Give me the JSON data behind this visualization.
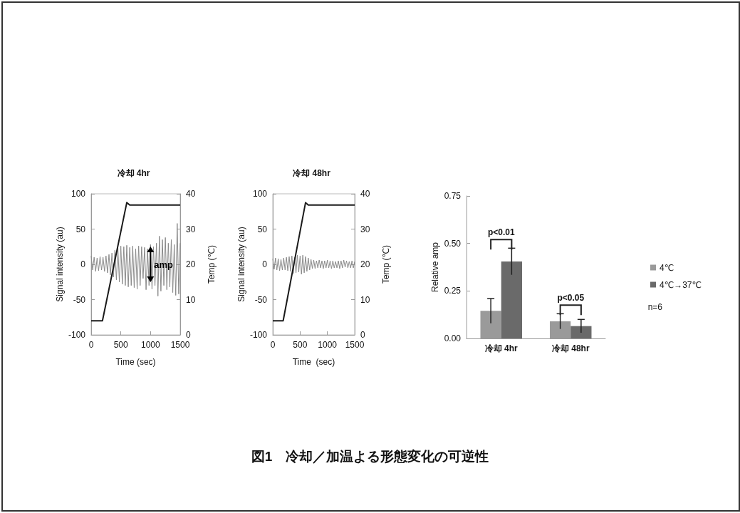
{
  "chart_data": [
    {
      "type": "line",
      "title": "冷却 4hr",
      "xlabel": "Time (sec)",
      "ylabel": "Signal intensity (au)",
      "y2label": "Temp (℃)",
      "marker": "none",
      "line_style": "solid",
      "grid": false,
      "legend": false,
      "xlim": [
        0,
        1500
      ],
      "xticks": [
        0,
        500,
        1000,
        1500
      ],
      "ylim": [
        -100,
        100
      ],
      "yticks": [
        -100,
        -50,
        0,
        50,
        100
      ],
      "y2lim": [
        0,
        40
      ],
      "y2ticks": [
        0,
        10,
        20,
        30,
        40
      ],
      "annotations": [
        {
          "text": "amp",
          "x": 1000,
          "y": 0
        }
      ],
      "series": [
        {
          "color": "#8a8a8a",
          "x": [
            0,
            25,
            50,
            75,
            100,
            125,
            150,
            175,
            200,
            225,
            250,
            275,
            300,
            325,
            350,
            375,
            400,
            425,
            450,
            475,
            500,
            525,
            550,
            575,
            600,
            625,
            650,
            675,
            700,
            725,
            750,
            775,
            800,
            825,
            850,
            875,
            900,
            925,
            950,
            975,
            1000,
            1025,
            1050,
            1075,
            1100,
            1125,
            1150,
            1175,
            1200,
            1225,
            1250,
            1275,
            1300,
            1325,
            1350,
            1375,
            1400,
            1425,
            1450,
            1475,
            1500
          ],
          "values": [
            12,
            -8,
            10,
            -10,
            9,
            -9,
            11,
            -8,
            10,
            -10,
            12,
            -12,
            14,
            -15,
            16,
            -18,
            20,
            -22,
            24,
            -25,
            26,
            -28,
            25,
            -30,
            27,
            -32,
            24,
            -30,
            26,
            -33,
            22,
            -35,
            26,
            -30,
            25,
            -20,
            24,
            -36,
            22,
            -30,
            28,
            -35,
            25,
            -30,
            30,
            -45,
            40,
            -38,
            35,
            -30,
            38,
            -36,
            30,
            -32,
            35,
            -40,
            28,
            -44,
            58,
            -42,
            30
          ]
        },
        {
          "color": "#1a1a1a",
          "axis": "y2",
          "x": [
            0,
            190,
            600,
            650,
            1500
          ],
          "values": [
            4,
            4,
            37.5,
            36.8,
            36.8
          ]
        }
      ]
    },
    {
      "type": "line",
      "title": "冷却 48hr",
      "xlabel": "Time  (sec)",
      "ylabel": "Signal intensity (au)",
      "y2label": "Temp (℃)",
      "marker": "none",
      "line_style": "solid",
      "grid": false,
      "legend": false,
      "xlim": [
        0,
        1500
      ],
      "xticks": [
        0,
        500,
        1000,
        1500
      ],
      "ylim": [
        -100,
        100
      ],
      "yticks": [
        -100,
        -50,
        0,
        50,
        100
      ],
      "y2lim": [
        0,
        40
      ],
      "y2ticks": [
        0,
        10,
        20,
        30,
        40
      ],
      "series": [
        {
          "color": "#8a8a8a",
          "x": [
            0,
            25,
            50,
            75,
            100,
            125,
            150,
            175,
            200,
            225,
            250,
            275,
            300,
            325,
            350,
            375,
            400,
            425,
            450,
            475,
            500,
            525,
            550,
            575,
            600,
            625,
            650,
            675,
            700,
            725,
            750,
            775,
            800,
            825,
            850,
            875,
            900,
            925,
            950,
            975,
            1000,
            1025,
            1050,
            1075,
            1100,
            1125,
            1150,
            1175,
            1200,
            1225,
            1250,
            1275,
            1300,
            1325,
            1350,
            1375,
            1400,
            1425,
            1450,
            1475,
            1500
          ],
          "values": [
            8,
            -7,
            9,
            -8,
            8,
            -9,
            7,
            -8,
            9,
            -8,
            10,
            -9,
            11,
            -10,
            12,
            -13,
            10,
            -12,
            13,
            -11,
            12,
            -14,
            13,
            -12,
            11,
            -10,
            9,
            -8,
            7,
            -6,
            6,
            -6,
            5,
            -5,
            6,
            -5,
            5,
            -6,
            5,
            -5,
            6,
            -5,
            5,
            -6,
            5,
            -5,
            4,
            -5,
            5,
            -6,
            5,
            -5,
            6,
            -4,
            5,
            -5,
            4,
            -5,
            5,
            -5,
            4
          ]
        },
        {
          "color": "#1a1a1a",
          "axis": "y2",
          "x": [
            0,
            190,
            600,
            650,
            1500
          ],
          "values": [
            4,
            4,
            37.5,
            36.8,
            36.8
          ]
        }
      ]
    },
    {
      "type": "bar",
      "ylabel": "Relative amp",
      "grid": false,
      "legend": "right",
      "categories": [
        "冷却 4hr",
        "冷却 48hr"
      ],
      "ylim": [
        0,
        0.75
      ],
      "yticks": [
        {
          "value": 0,
          "label": "0.00"
        },
        {
          "value": 0.25,
          "label": "0.25"
        },
        {
          "value": 0.5,
          "label": "0.50"
        },
        {
          "value": 0.75,
          "label": "0.75"
        }
      ],
      "annotations": [
        "p<0.01",
        "p<0.05",
        "n=6",
        "図1　冷却／加温よる形態変化の可逆性"
      ],
      "series": [
        {
          "name": "4℃",
          "color": "#9a9a9a",
          "values": [
            0.145,
            0.09
          ],
          "errors": [
            0.065,
            0.04
          ]
        },
        {
          "name": "4℃→37℃",
          "color": "#6a6a6a",
          "values": [
            0.405,
            0.065
          ],
          "errors": [
            0.07,
            0.035
          ]
        }
      ]
    }
  ]
}
